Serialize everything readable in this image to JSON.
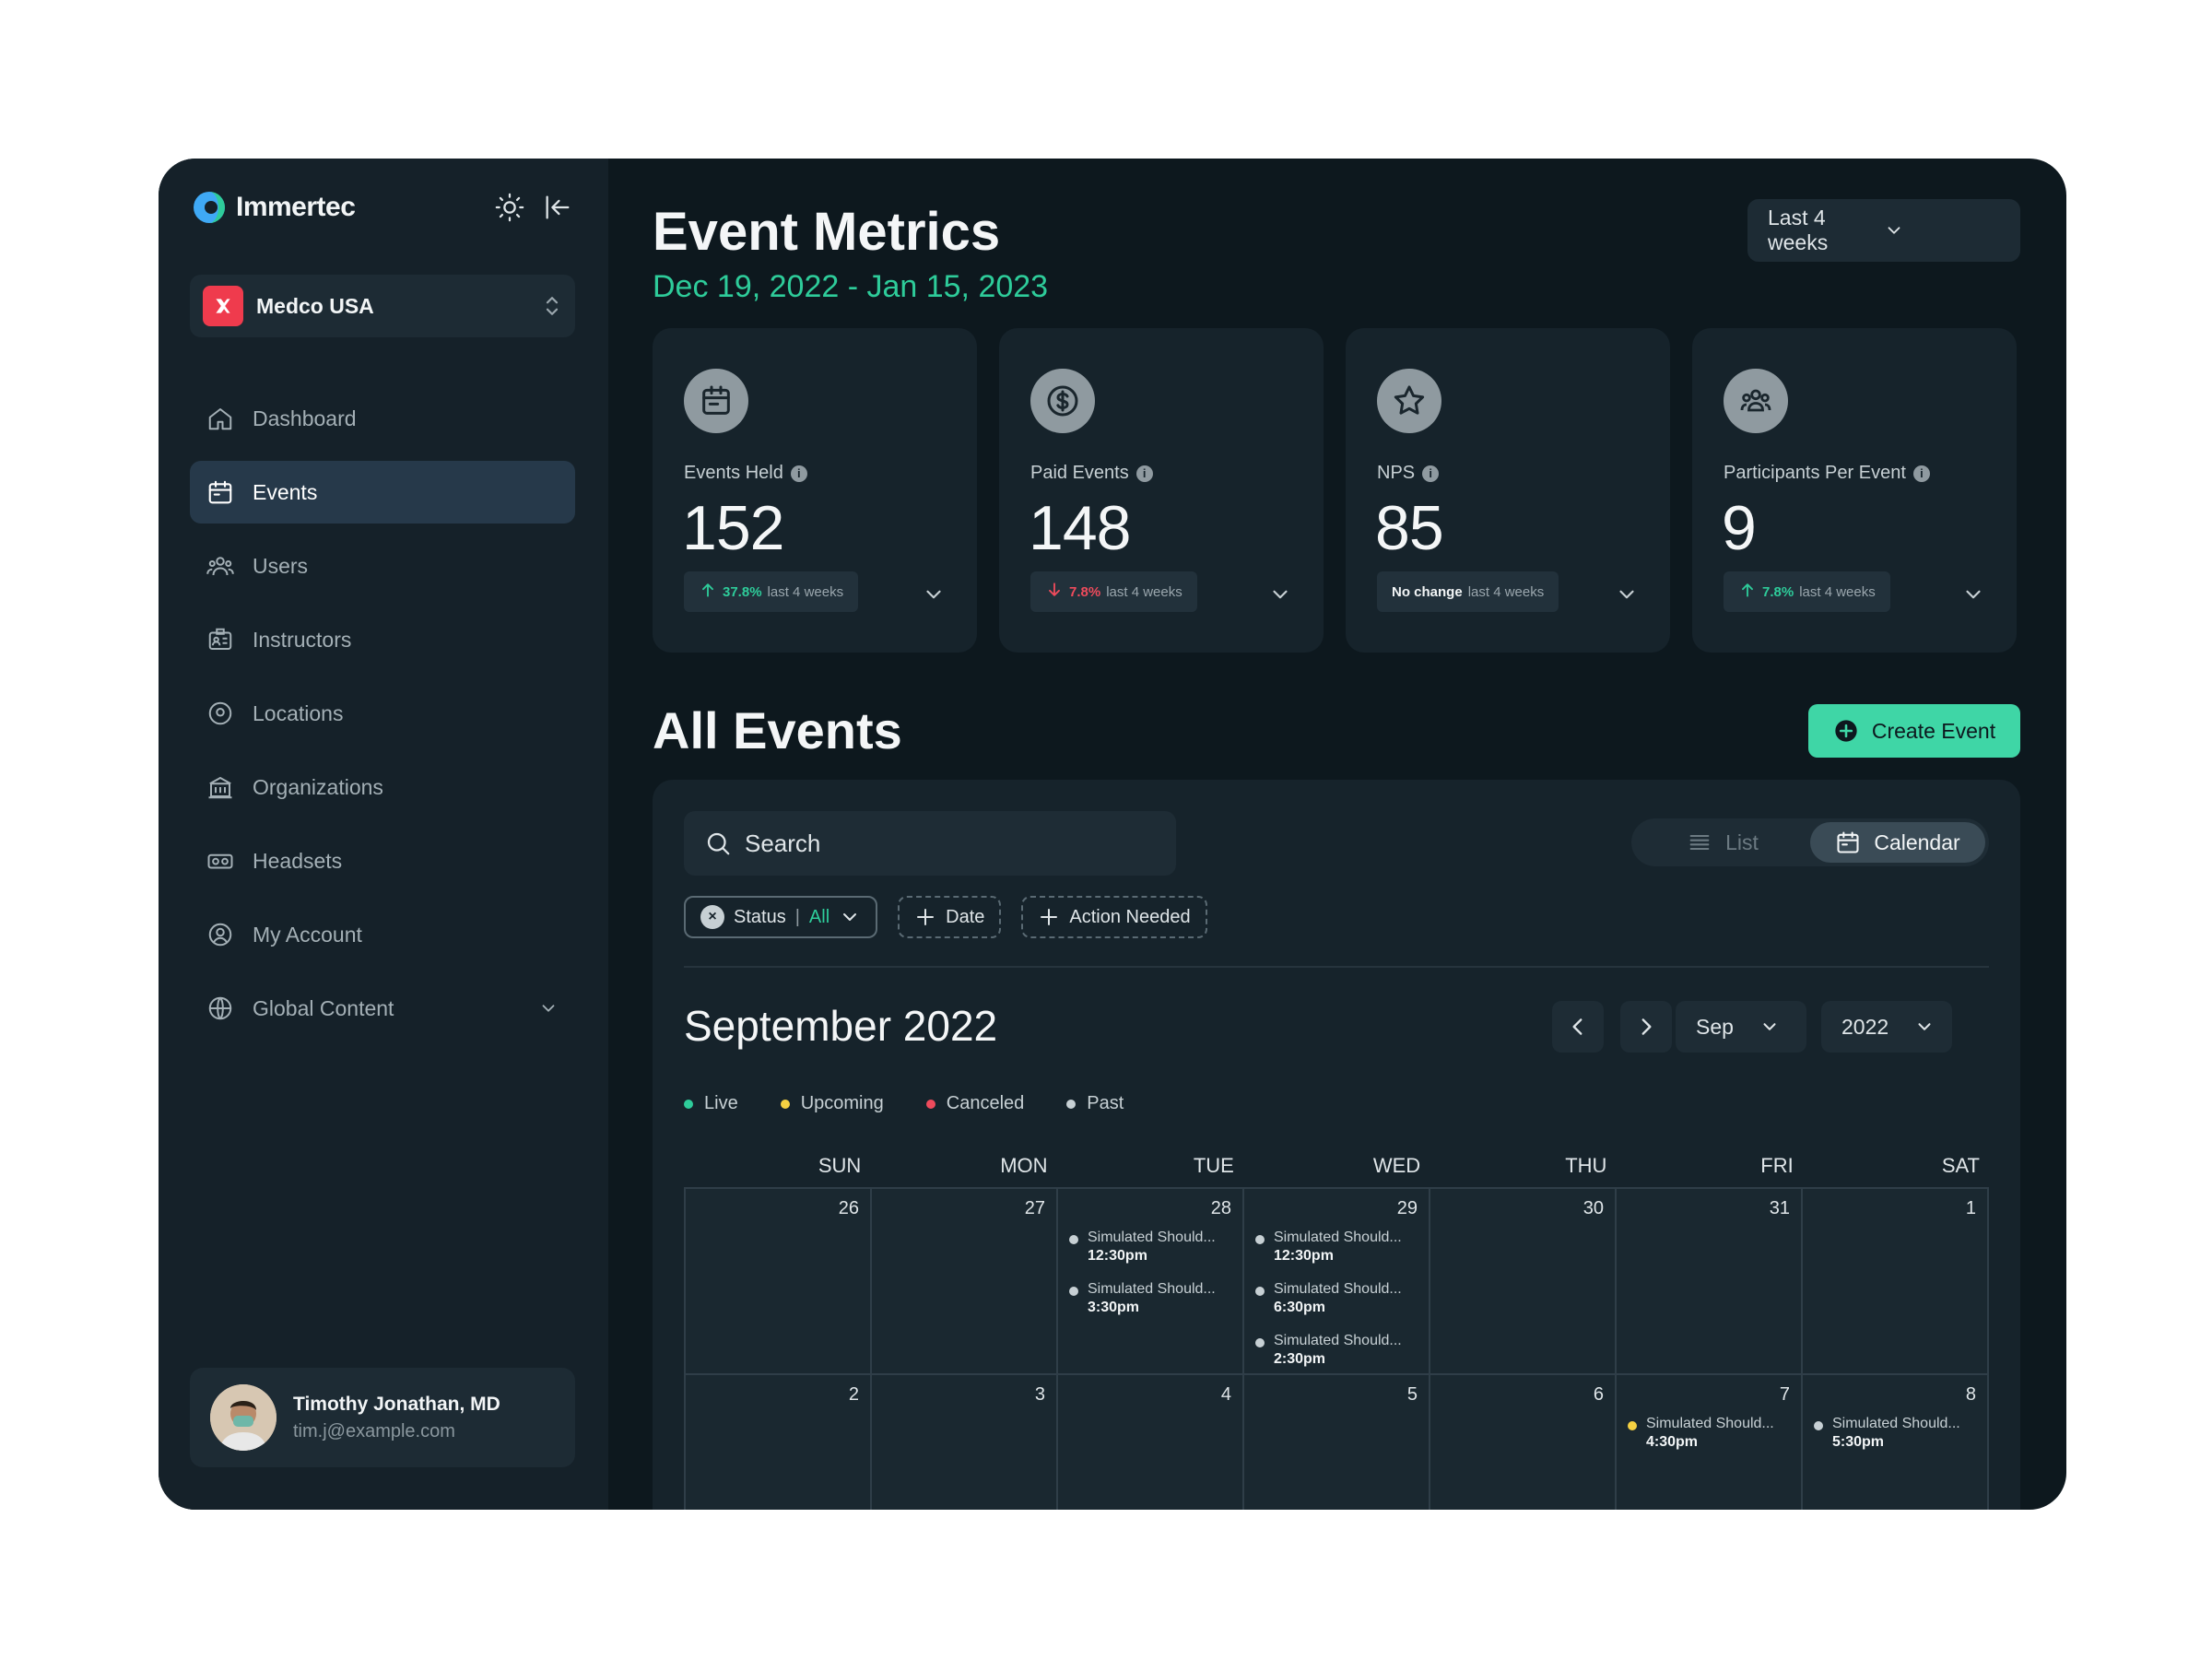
{
  "brand": {
    "name": "Immertec"
  },
  "org": {
    "name": "Medco USA"
  },
  "nav": {
    "items": [
      {
        "label": "Dashboard"
      },
      {
        "label": "Events"
      },
      {
        "label": "Users"
      },
      {
        "label": "Instructors"
      },
      {
        "label": "Locations"
      },
      {
        "label": "Organizations"
      },
      {
        "label": "Headsets"
      },
      {
        "label": "My Account"
      },
      {
        "label": "Global Content"
      }
    ],
    "active": "Events"
  },
  "user": {
    "name": "Timothy Jonathan, MD",
    "email": "tim.j@example.com"
  },
  "header": {
    "title": "Event Metrics",
    "date_range": "Dec 19, 2022 -  Jan 15, 2023",
    "range_select": "Last 4 weeks"
  },
  "metrics": [
    {
      "label": "Events Held",
      "value": "152",
      "change": "37.8%",
      "change_suffix": "last 4 weeks",
      "direction": "up",
      "icon": "calendar-icon"
    },
    {
      "label": "Paid Events",
      "value": "148",
      "change": "7.8%",
      "change_suffix": "last 4 weeks",
      "direction": "down",
      "icon": "dollar-icon"
    },
    {
      "label": "NPS",
      "value": "85",
      "change": "No change",
      "change_suffix": "last 4 weeks",
      "direction": "flat",
      "icon": "star-icon"
    },
    {
      "label": "Participants Per Event",
      "value": "9",
      "change": "7.8%",
      "change_suffix": "last 4 weeks",
      "direction": "up",
      "icon": "people-icon"
    }
  ],
  "events_section": {
    "title": "All Events",
    "create_label": "Create Event",
    "search_placeholder": "Search",
    "view": {
      "list": "List",
      "calendar": "Calendar",
      "active": "Calendar"
    },
    "filters": {
      "status_label": "Status",
      "status_sep": "|",
      "status_value": "All",
      "date_label": "Date",
      "action_label": "Action Needed"
    }
  },
  "calendar": {
    "month_title": "September 2022",
    "month_select": "Sep",
    "year_select": "2022",
    "legend": [
      {
        "label": "Live",
        "color": "#2ecc9a"
      },
      {
        "label": "Upcoming",
        "color": "#f5d142"
      },
      {
        "label": "Canceled",
        "color": "#ef4b5c"
      },
      {
        "label": "Past",
        "color": "#c7d0d4"
      }
    ],
    "weekdays": [
      "SUN",
      "MON",
      "TUE",
      "WED",
      "THU",
      "FRI",
      "SAT"
    ],
    "weeks": [
      [
        {
          "day": "26",
          "events": []
        },
        {
          "day": "27",
          "events": []
        },
        {
          "day": "28",
          "events": [
            {
              "title": "Simulated Should...",
              "time": "12:30pm",
              "status": "Past"
            },
            {
              "title": "Simulated Should...",
              "time": "3:30pm",
              "status": "Past"
            }
          ]
        },
        {
          "day": "29",
          "events": [
            {
              "title": "Simulated Should...",
              "time": "12:30pm",
              "status": "Past"
            },
            {
              "title": "Simulated Should...",
              "time": "6:30pm",
              "status": "Past"
            },
            {
              "title": "Simulated Should...",
              "time": "2:30pm",
              "status": "Past"
            }
          ]
        },
        {
          "day": "30",
          "events": []
        },
        {
          "day": "31",
          "events": []
        },
        {
          "day": "1",
          "events": []
        }
      ],
      [
        {
          "day": "2",
          "events": []
        },
        {
          "day": "3",
          "events": []
        },
        {
          "day": "4",
          "events": []
        },
        {
          "day": "5",
          "events": []
        },
        {
          "day": "6",
          "events": []
        },
        {
          "day": "7",
          "events": [
            {
              "title": "Simulated Should...",
              "time": "4:30pm",
              "status": "Upcoming"
            }
          ]
        },
        {
          "day": "8",
          "events": [
            {
              "title": "Simulated Should...",
              "time": "5:30pm",
              "status": "Past"
            }
          ]
        }
      ]
    ]
  },
  "colors": {
    "accent": "#2ecc9a",
    "button": "#3fd6a6",
    "danger": "#ef4b5c",
    "sidebar_bg": "#152129",
    "main_bg": "#0d181e"
  }
}
